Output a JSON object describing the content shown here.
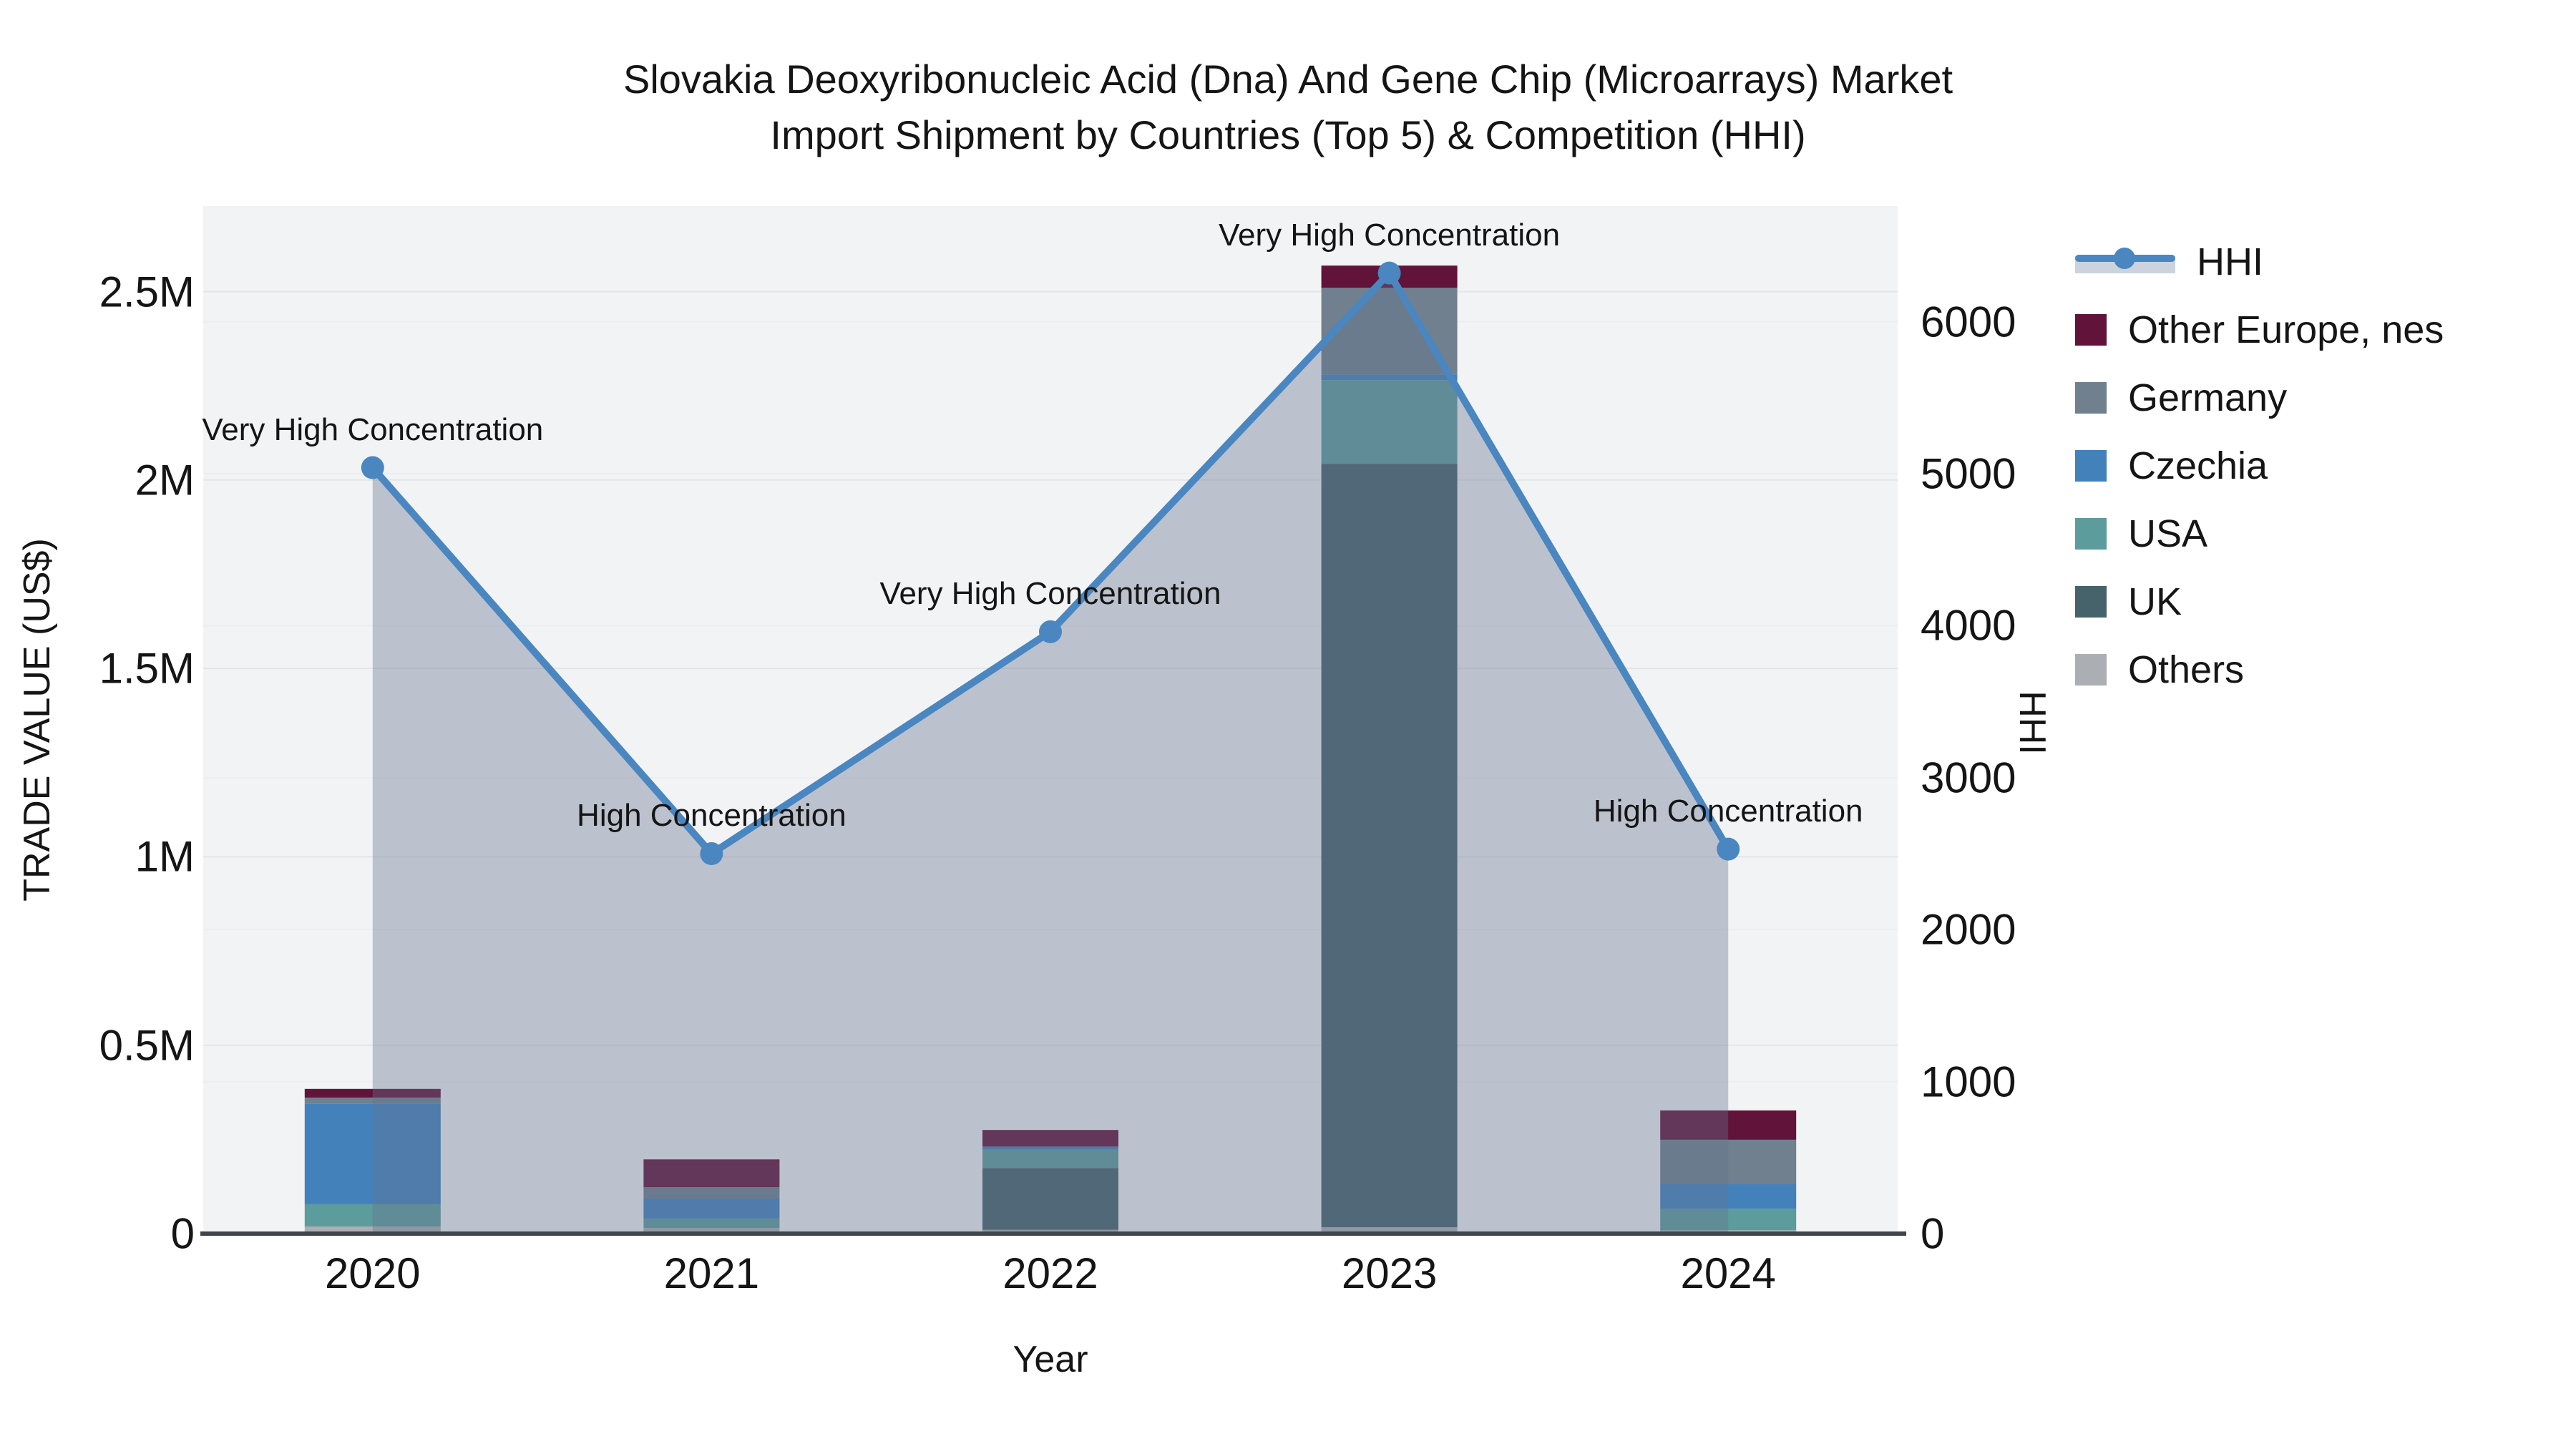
{
  "title": {
    "line1": "Slovakia Deoxyribonucleic Acid (Dna) And Gene Chip (Microarrays) Market",
    "line2": "Import Shipment by Countries (Top 5) & Competition (HHI)"
  },
  "chart_data": {
    "type": "combo-stacked-bar-line",
    "categories": [
      "2020",
      "2021",
      "2022",
      "2023",
      "2024"
    ],
    "bar_series": [
      {
        "name": "Others",
        "color": "#ABAEB2",
        "values": [
          19000,
          15000,
          10000,
          17000,
          9000
        ]
      },
      {
        "name": "UK",
        "color": "#46626B",
        "values": [
          0,
          0,
          164000,
          2026000,
          0
        ]
      },
      {
        "name": "USA",
        "color": "#5C9C9C",
        "values": [
          59000,
          25000,
          49000,
          222000,
          57000
        ]
      },
      {
        "name": "Czechia",
        "color": "#4381BB",
        "values": [
          266000,
          53000,
          8000,
          15000,
          65000
        ]
      },
      {
        "name": "Germany",
        "color": "#70808F",
        "values": [
          17000,
          30000,
          0,
          230000,
          118000
        ]
      },
      {
        "name": "Other Europe, nes",
        "color": "#62133A",
        "values": [
          23000,
          74000,
          44000,
          59000,
          78000
        ]
      }
    ],
    "line_series": {
      "name": "HHI",
      "color": "#4A86C0",
      "area_fill": "rgba(100,116,141,0.38)",
      "values": [
        5040,
        2500,
        3960,
        6320,
        2530
      ]
    },
    "annotations": [
      "Very High Concentration",
      "High Concentration",
      "Very High Concentration",
      "Very High Concentration",
      "High Concentration"
    ],
    "left_axis": {
      "label": "TRADE VALUE (US$)",
      "range": [
        0,
        2500000
      ],
      "ticks": [
        {
          "value": 0,
          "label": "0"
        },
        {
          "value": 500000,
          "label": "0.5M"
        },
        {
          "value": 1000000,
          "label": "1M"
        },
        {
          "value": 1500000,
          "label": "1.5M"
        },
        {
          "value": 2000000,
          "label": "2M"
        },
        {
          "value": 2500000,
          "label": "2.5M"
        }
      ]
    },
    "right_axis": {
      "label": "HHI",
      "range": [
        0,
        6000
      ],
      "ticks": [
        {
          "value": 0,
          "label": "0"
        },
        {
          "value": 1000,
          "label": "1000"
        },
        {
          "value": 2000,
          "label": "2000"
        },
        {
          "value": 3000,
          "label": "3000"
        },
        {
          "value": 4000,
          "label": "4000"
        },
        {
          "value": 5000,
          "label": "5000"
        },
        {
          "value": 6000,
          "label": "6000"
        }
      ]
    },
    "x_axis": {
      "label": "Year"
    },
    "legend": [
      {
        "label": "HHI",
        "type": "line",
        "color": "#4A86C0"
      },
      {
        "label": "Other Europe, nes",
        "type": "square",
        "color": "#62133A"
      },
      {
        "label": "Germany",
        "type": "square",
        "color": "#70808F"
      },
      {
        "label": "Czechia",
        "type": "square",
        "color": "#4381BB"
      },
      {
        "label": "USA",
        "type": "square",
        "color": "#5C9C9C"
      },
      {
        "label": "UK",
        "type": "square",
        "color": "#46626B"
      },
      {
        "label": "Others",
        "type": "square",
        "color": "#ABAEB2"
      }
    ],
    "plot_background": "#F2F3F4",
    "legend_position": "right",
    "grid": true
  }
}
